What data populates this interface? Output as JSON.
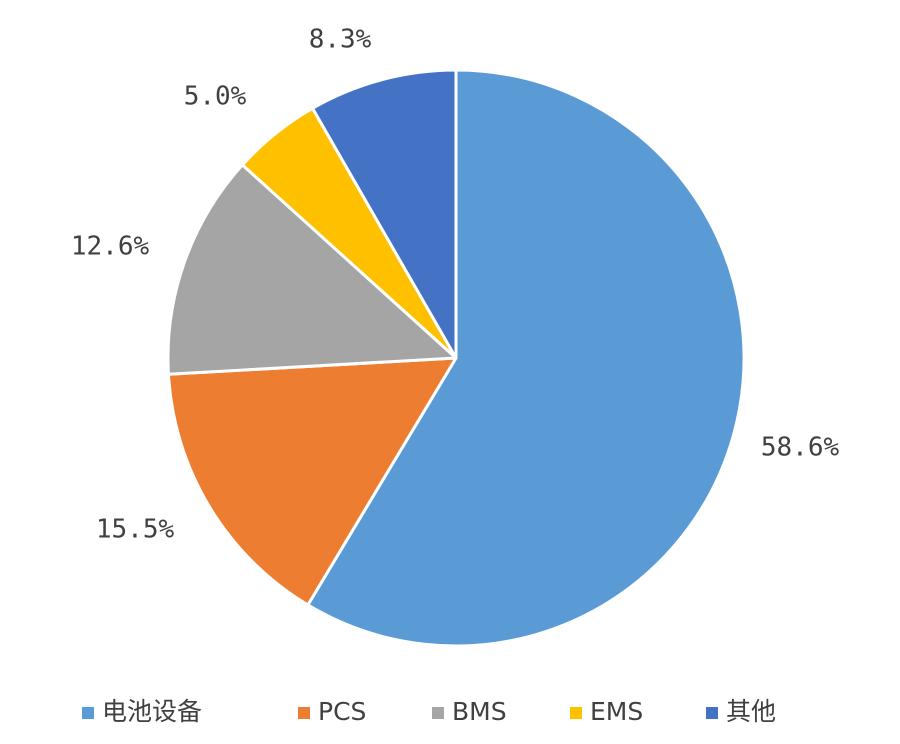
{
  "chart_data": {
    "type": "pie",
    "title": "",
    "start_angle_deg": 0,
    "direction": "clockwise",
    "legend_position": "bottom",
    "slices": [
      {
        "label": "电池设备",
        "value": 58.6,
        "display": "58.6%",
        "color": "#5B9BD5"
      },
      {
        "label": "PCS",
        "value": 15.5,
        "display": "15.5%",
        "color": "#ED7D31"
      },
      {
        "label": "BMS",
        "value": 12.6,
        "display": "12.6%",
        "color": "#A5A5A5"
      },
      {
        "label": "EMS",
        "value": 5.0,
        "display": "5.0%",
        "color": "#FFC000"
      },
      {
        "label": "其他",
        "value": 8.3,
        "display": "8.3%",
        "color": "#4472C4"
      }
    ]
  }
}
